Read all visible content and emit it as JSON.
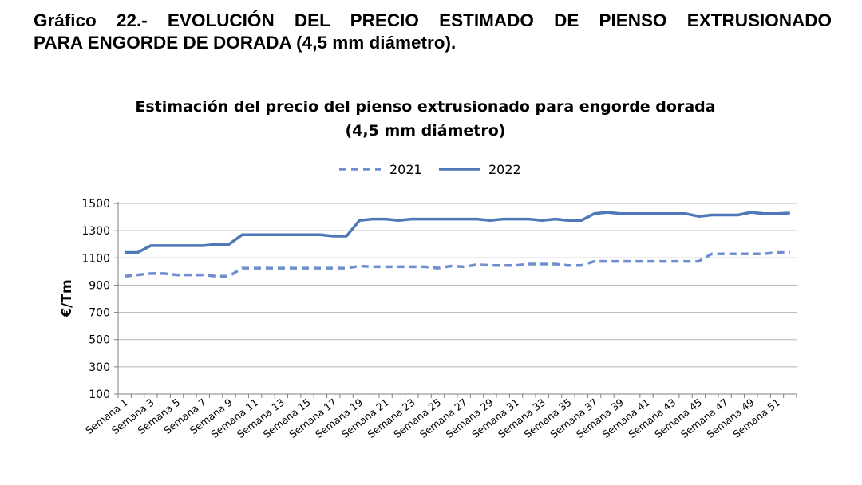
{
  "document": {
    "heading_line1": "Gráfico 22.- EVOLUCIÓN DEL PRECIO ESTIMADO DE PIENSO EXTRUSIONADO",
    "heading_line2": "PARA ENGORDE DE DORADA (4,5 mm diámetro)."
  },
  "chart_data": {
    "type": "line",
    "title_line1": "Estimación del precio del pienso extrusionado para engorde dorada",
    "title_line2": "(4,5 mm diámetro)",
    "ylabel": "€/Tm",
    "xlabel": "",
    "ylim": [
      100,
      1500
    ],
    "yticks": [
      100,
      300,
      500,
      700,
      900,
      1100,
      1300,
      1500
    ],
    "grid": true,
    "legend_position": "top-center",
    "categories": [
      "Semana 1",
      "Semana 2",
      "Semana 3",
      "Semana 4",
      "Semana 5",
      "Semana 6",
      "Semana 7",
      "Semana 8",
      "Semana 9",
      "Semana 10",
      "Semana 11",
      "Semana 12",
      "Semana 13",
      "Semana 14",
      "Semana 15",
      "Semana 16",
      "Semana 17",
      "Semana 18",
      "Semana 19",
      "Semana 20",
      "Semana 21",
      "Semana 22",
      "Semana 23",
      "Semana 24",
      "Semana 25",
      "Semana 26",
      "Semana 27",
      "Semana 28",
      "Semana 29",
      "Semana 30",
      "Semana 31",
      "Semana 32",
      "Semana 33",
      "Semana 34",
      "Semana 35",
      "Semana 36",
      "Semana 37",
      "Semana 38",
      "Semana 39",
      "Semana 40",
      "Semana 41",
      "Semana 42",
      "Semana 43",
      "Semana 44",
      "Semana 45",
      "Semana 46",
      "Semana 47",
      "Semana 48",
      "Semana 49",
      "Semana 50",
      "Semana 51",
      "Semana 52"
    ],
    "tick_labels": [
      "Semana 1",
      "Semana 3",
      "Semana 5",
      "Semana 7",
      "Semana 9",
      "Semana 11",
      "Semana 13",
      "Semana 15",
      "Semana 17",
      "Semana 19",
      "Semana 21",
      "Semana 23",
      "Semana 25",
      "Semana 27",
      "Semana 29",
      "Semana 31",
      "Semana 33",
      "Semana 35",
      "Semana 37",
      "Semana 39",
      "Semana 41",
      "Semana 43",
      "Semana 45",
      "Semana 47",
      "Semana 49",
      "Semana 51"
    ],
    "series": [
      {
        "name": "2021",
        "style": "dashed",
        "color": "#6f8fcf",
        "values": [
          965,
          975,
          985,
          985,
          975,
          975,
          975,
          965,
          965,
          1025,
          1025,
          1025,
          1025,
          1025,
          1025,
          1025,
          1025,
          1025,
          1040,
          1035,
          1035,
          1035,
          1035,
          1035,
          1025,
          1040,
          1035,
          1050,
          1045,
          1045,
          1045,
          1055,
          1055,
          1055,
          1045,
          1045,
          1075,
          1075,
          1075,
          1075,
          1075,
          1075,
          1075,
          1075,
          1075,
          1130,
          1130,
          1130,
          1130,
          1130,
          1140,
          1140
        ]
      },
      {
        "name": "2022",
        "style": "solid",
        "color": "#4f78b8",
        "values": [
          1140,
          1140,
          1190,
          1190,
          1190,
          1190,
          1190,
          1200,
          1200,
          1270,
          1270,
          1270,
          1270,
          1270,
          1270,
          1270,
          1260,
          1260,
          1375,
          1385,
          1385,
          1375,
          1385,
          1385,
          1385,
          1385,
          1385,
          1385,
          1375,
          1385,
          1385,
          1385,
          1375,
          1385,
          1375,
          1375,
          1425,
          1435,
          1425,
          1425,
          1425,
          1425,
          1425,
          1425,
          1405,
          1415,
          1415,
          1415,
          1435,
          1425,
          1425,
          1430
        ]
      }
    ]
  }
}
